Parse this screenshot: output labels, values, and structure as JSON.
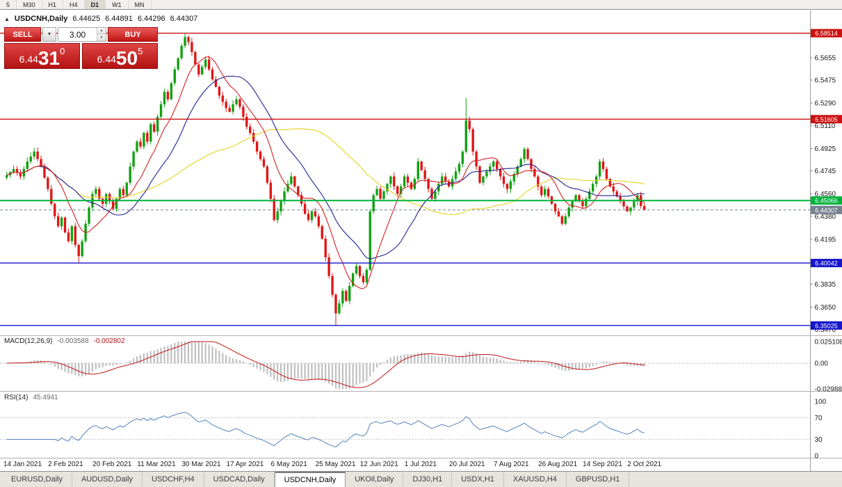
{
  "toolbar": {
    "timeframes": [
      "5",
      "M30",
      "H1",
      "H4",
      "D1",
      "W1",
      "MN"
    ],
    "active": "D1"
  },
  "icons": {
    "panel_toggle": "▲",
    "dropdown_arrow": "▼",
    "spin_up": "▲",
    "spin_down": "▼"
  },
  "chart_header": {
    "symbol": "USDCNH,Daily",
    "open": "6.44625",
    "high": "6.44891",
    "low": "6.44296",
    "close": "6.44307"
  },
  "trade_panel": {
    "sell_label": "SELL",
    "buy_label": "BUY",
    "volume": "3.00",
    "sell_price": {
      "prefix": "6.44",
      "big": "31",
      "sup": "0"
    },
    "buy_price": {
      "prefix": "6.44",
      "big": "50",
      "sup": "5"
    }
  },
  "chart_data": {
    "type": "candlestick",
    "symbol": "USDCNH",
    "timeframe": "Daily",
    "title": "USDCNH,Daily",
    "ohlc_current": {
      "open": 6.44625,
      "high": 6.44891,
      "low": 6.44296,
      "close": 6.44307
    },
    "style": {
      "up_color": "#12a112",
      "down_color": "#e01616",
      "background": "#ffffff"
    },
    "y_axis": {
      "range": {
        "min": 6.344,
        "max": 6.59
      },
      "ticks": [
        "6.5655",
        "6.5475",
        "6.5290",
        "6.5110",
        "6.4925",
        "6.4745",
        "6.4560",
        "6.4380",
        "6.4195",
        "6.3835",
        "6.3650",
        "6.3470"
      ]
    },
    "x_axis": {
      "labels": [
        {
          "bar": 0,
          "text": "14 Jan 2021"
        },
        {
          "bar": 13,
          "text": "2 Feb 2021"
        },
        {
          "bar": 26,
          "text": "20 Feb 2021"
        },
        {
          "bar": 39,
          "text": "11 Mar 2021"
        },
        {
          "bar": 52,
          "text": "30 Mar 2021"
        },
        {
          "bar": 65,
          "text": "17 Apr 2021"
        },
        {
          "bar": 78,
          "text": "6 May 2021"
        },
        {
          "bar": 91,
          "text": "25 May 2021"
        },
        {
          "bar": 104,
          "text": "12 Jun 2021"
        },
        {
          "bar": 117,
          "text": "1 Jul 2021"
        },
        {
          "bar": 130,
          "text": "20 Jul 2021"
        },
        {
          "bar": 143,
          "text": "7 Aug 2021"
        },
        {
          "bar": 156,
          "text": "26 Aug 2021"
        },
        {
          "bar": 169,
          "text": "14 Sep 2021"
        },
        {
          "bar": 182,
          "text": "2 Oct 2021"
        }
      ]
    },
    "first_open": 6.469,
    "closes": [
      6.471,
      6.4735,
      6.476,
      6.473,
      6.47,
      6.476,
      6.482,
      6.486,
      6.49,
      6.484,
      6.478,
      6.469,
      6.46,
      6.448,
      6.438,
      6.43,
      6.437,
      6.425,
      6.418,
      6.43,
      6.415,
      6.406,
      6.418,
      6.432,
      6.445,
      6.456,
      6.46,
      6.452,
      6.448,
      6.456,
      6.45,
      6.444,
      6.452,
      6.46,
      6.455,
      6.465,
      6.478,
      6.49,
      6.498,
      6.494,
      6.505,
      6.498,
      6.512,
      6.506,
      6.518,
      6.528,
      6.538,
      6.532,
      6.545,
      6.556,
      6.565,
      6.575,
      6.582,
      6.578,
      6.57,
      6.56,
      6.552,
      6.558,
      6.564,
      6.556,
      6.548,
      6.542,
      6.535,
      6.53,
      6.525,
      6.522,
      6.528,
      6.532,
      6.526,
      6.518,
      6.51,
      6.505,
      6.498,
      6.49,
      6.484,
      6.478,
      6.465,
      6.452,
      6.435,
      6.442,
      6.45,
      6.458,
      6.464,
      6.47,
      6.462,
      6.455,
      6.448,
      6.44,
      6.435,
      6.442,
      6.438,
      6.43,
      6.42,
      6.405,
      6.39,
      6.375,
      6.36,
      6.368,
      6.378,
      6.37,
      6.382,
      6.392,
      6.398,
      6.39,
      6.385,
      6.395,
      6.442,
      6.455,
      6.46,
      6.452,
      6.458,
      6.464,
      6.47,
      6.462,
      6.456,
      6.462,
      6.47,
      6.465,
      6.46,
      6.468,
      6.482,
      6.475,
      6.468,
      6.46,
      6.452,
      6.458,
      6.464,
      6.47,
      6.466,
      6.462,
      6.468,
      6.474,
      6.48,
      6.49,
      6.515,
      6.508,
      6.49,
      6.478,
      6.465,
      6.47,
      6.474,
      6.478,
      6.482,
      6.476,
      6.47,
      6.464,
      6.46,
      6.466,
      6.472,
      6.478,
      6.484,
      6.492,
      6.484,
      6.476,
      6.47,
      6.462,
      6.455,
      6.46,
      6.454,
      6.448,
      6.442,
      6.438,
      6.432,
      6.438,
      6.445,
      6.45,
      6.455,
      6.45,
      6.446,
      6.452,
      6.458,
      6.464,
      6.47,
      6.482,
      6.476,
      6.468,
      6.462,
      6.458,
      6.454,
      6.45,
      6.446,
      6.442,
      6.445,
      6.45,
      6.455,
      6.4463,
      6.44307
    ],
    "wick_overrides": [
      {
        "bar": 21,
        "low": 6.4005
      },
      {
        "bar": 52,
        "high": 6.5851
      },
      {
        "bar": 96,
        "low": 6.3503
      },
      {
        "bar": 106,
        "low": 6.394
      },
      {
        "bar": 134,
        "high": 6.533
      },
      {
        "bar": 186,
        "high": 6.44891,
        "low": 6.44296
      }
    ],
    "horizontal_levels": [
      {
        "price": 6.58514,
        "label": "6.58514",
        "color": "#cc1111",
        "width": 1.4,
        "type": "resistance"
      },
      {
        "price": 6.51605,
        "label": "6.51605",
        "color": "#cc1111",
        "width": 1.4,
        "type": "resistance"
      },
      {
        "price": 6.45066,
        "label": "6.45066",
        "color": "#00b23c",
        "width": 2,
        "type": "pivot"
      },
      {
        "price": 6.40042,
        "label": "6.40042",
        "color": "#1515cc",
        "width": 1.4,
        "type": "support"
      },
      {
        "price": 6.35025,
        "label": "6.35025",
        "color": "#1515cc",
        "width": 1.4,
        "type": "support"
      }
    ],
    "bid_line": {
      "price": 6.44307,
      "label": "6.44307",
      "color": "#76828f"
    },
    "moving_averages": [
      {
        "name": "fast-ma",
        "period": 10,
        "color": "#d42020"
      },
      {
        "name": "medium-ma",
        "period": 21,
        "color": "#202095"
      },
      {
        "name": "slow-ma",
        "period": 55,
        "color": "#e8d222"
      }
    ],
    "indicators": {
      "macd": {
        "label": "MACD(12,26,9)",
        "value_main": "-0.003588",
        "value_signal": "-0.002802",
        "axis": [
          "0.025108",
          "0.00",
          "-0.029881"
        ],
        "range": {
          "min": -0.029881,
          "max": 0.025108
        },
        "fast": 12,
        "slow": 26,
        "signal": 9,
        "histogram_color": "#bfbfbf",
        "signal_color": "#c01212"
      },
      "rsi": {
        "label": "RSI(14)",
        "value": "45.4941",
        "axis": [
          "100",
          "70",
          "30",
          "0"
        ],
        "levels": [
          70,
          30
        ],
        "period": 14,
        "line_color": "#4f81bd"
      }
    }
  },
  "bottom_tabs": {
    "items": [
      "EURUSD,Daily",
      "AUDUSD,Daily",
      "USDCHF,H4",
      "USDCAD,Daily",
      "USDCNH,Daily",
      "UKOil,Daily",
      "DJ30,H1",
      "USDX,H1",
      "XAUUSD,H4",
      "GBPUSD,H1"
    ],
    "active": "USDCNH,Daily"
  }
}
